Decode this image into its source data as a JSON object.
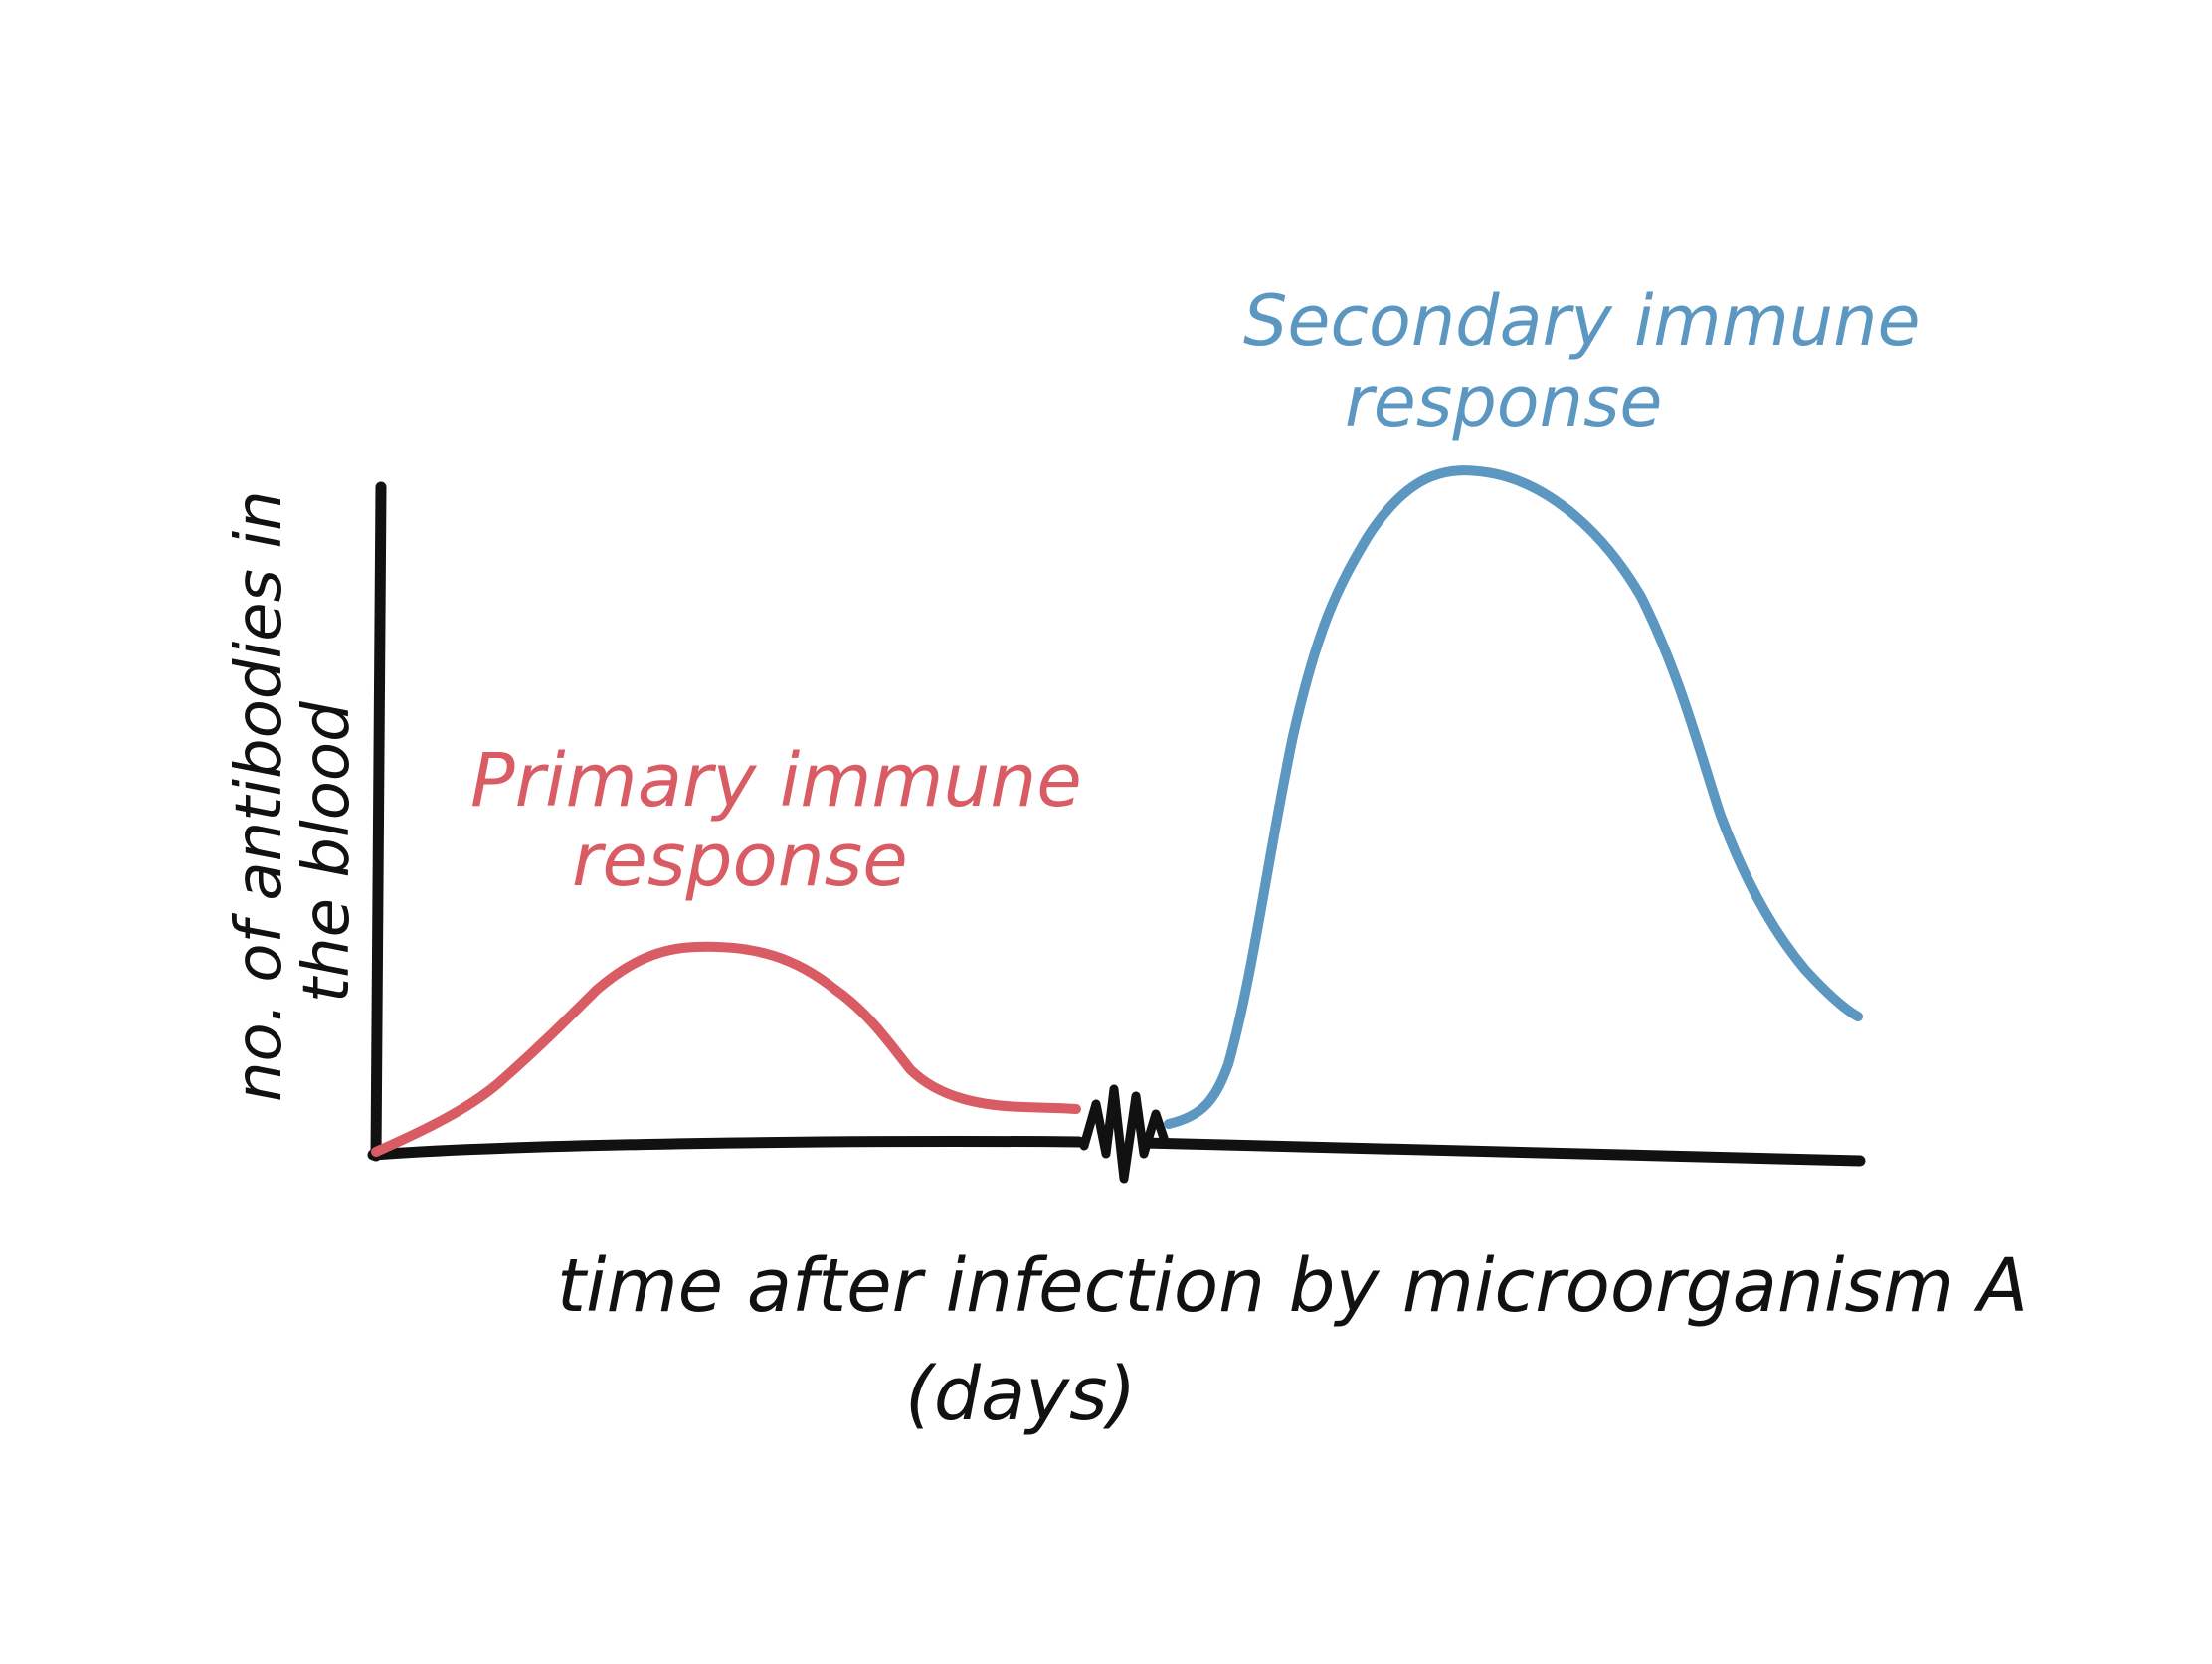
{
  "chart_data": {
    "type": "line",
    "x_axis_label_line1": "time after infection by microorganism A",
    "x_axis_label_line2": "(days)",
    "y_axis_label_line1": "no. of antibodies in",
    "y_axis_label_line2": "the blood",
    "axis_break": true,
    "grid": false,
    "series": [
      {
        "name_line1": "Primary immune",
        "name_line2": "response",
        "color": "#d95b63",
        "shape": "small-peak",
        "relative_peak_level": 0.31
      },
      {
        "name_line1": "Secondary immune",
        "name_line2": "response",
        "color": "#5b97c1",
        "shape": "large-peak",
        "relative_peak_level": 1.0
      }
    ]
  },
  "colors": {
    "axis": "#111111",
    "primary": "#d95b63",
    "secondary": "#5b97c1",
    "background": "#ffffff"
  }
}
